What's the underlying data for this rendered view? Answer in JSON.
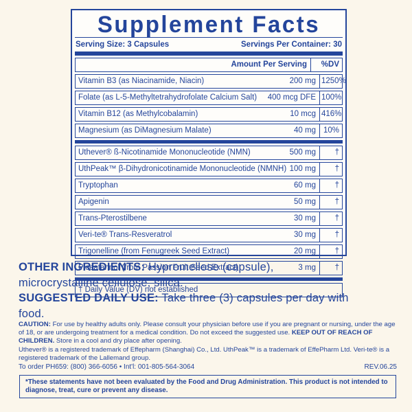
{
  "colors": {
    "blue": "#24459B",
    "cream": "#FBF6EB",
    "panel_bg": "#FEFDFA"
  },
  "panel": {
    "title": "Supplement Facts",
    "serving_size": "Serving Size: 3 Capsules",
    "servings_per_container": "Servings Per Container: 30",
    "amount_header": "Amount Per Serving",
    "dv_header": "%DV",
    "rows": [
      {
        "name": "Vitamin B3 (as Niacinamide, Niacin)",
        "amount": "200 mg",
        "dv": "1250%",
        "thick_after": false
      },
      {
        "name": "Folate (as L-5-Methyltetrahydrofolate Calcium Salt)",
        "amount": "400 mcg DFE",
        "dv": "100%",
        "thick_after": false
      },
      {
        "name": "Vitamin B12 (as Methylcobalamin)",
        "amount": "10 mcg",
        "dv": "416%",
        "thick_after": false
      },
      {
        "name": "Magnesium (as DiMagnesium Malate)",
        "amount": "40 mg",
        "dv": "10%",
        "thick_after": true
      },
      {
        "name": "Uthever® ß-Nicotinamide Mononucleotide (NMN)",
        "amount": "500 mg",
        "dv": "†",
        "thick_after": false
      },
      {
        "name": "UthPeak™ β-Dihydronicotinamide Mononucleotide (NMNH)",
        "amount": "100 mg",
        "dv": "†",
        "thick_after": false
      },
      {
        "name": "Tryptophan",
        "amount": "60 mg",
        "dv": "†",
        "thick_after": false
      },
      {
        "name": "Apigenin",
        "amount": "50 mg",
        "dv": "†",
        "thick_after": false
      },
      {
        "name": "Trans-Pterostilbene",
        "amount": "30 mg",
        "dv": "†",
        "thick_after": false
      },
      {
        "name": "Veri-te® Trans-Resveratrol",
        "amount": "30 mg",
        "dv": "†",
        "thick_after": false
      },
      {
        "name": "Trigonelline (from Fenugreek Seed Extract)",
        "amount": "20 mg",
        "dv": "†",
        "thick_after": false
      },
      {
        "name": "Piceatannol (from Passion Fruit Seed Extract)",
        "amount": "3 mg",
        "dv": "†",
        "thick_after": true
      }
    ],
    "footnote": "† Daily Value (DV) not established"
  },
  "other_ingredients": {
    "label": "OTHER INGREDIENTS:",
    "line1_rest": " Hypromellose (capsule),",
    "line2": "microcrystalline cellulose, silica."
  },
  "suggested_use": {
    "label": "SUGGESTED DAILY USE:",
    "line1_rest": " Take three (3) capsules per day with",
    "line2": "food."
  },
  "caution": {
    "label": "CAUTION:",
    "before_bold": " For use by healthy adults only. Please consult your physician before use if you are pregnant or nursing, under the age of 18, or are undergoing treatment for a medical condition. Do not exceed the suggested use. ",
    "bold": "KEEP OUT OF REACH OF CHILDREN.",
    "after_bold": " Store in a cool and dry place after opening."
  },
  "trademarks": "Uthever® is a registered trademark of Effepharm (Shanghai) Co., Ltd. UthPeak™ is a trademark of EffePharm Ltd. Veri-te® is a registered trademark of the Lallemand group.",
  "order_info": "To order PH659: (800) 366-6056 • Int'l: 001-805-564-3064",
  "revision": "REV.06.25",
  "fda_disclaimer": "*These statements have not been evaluated by the Food and Drug Administration. This product is not intended to diagnose, treat, cure or prevent any disease."
}
